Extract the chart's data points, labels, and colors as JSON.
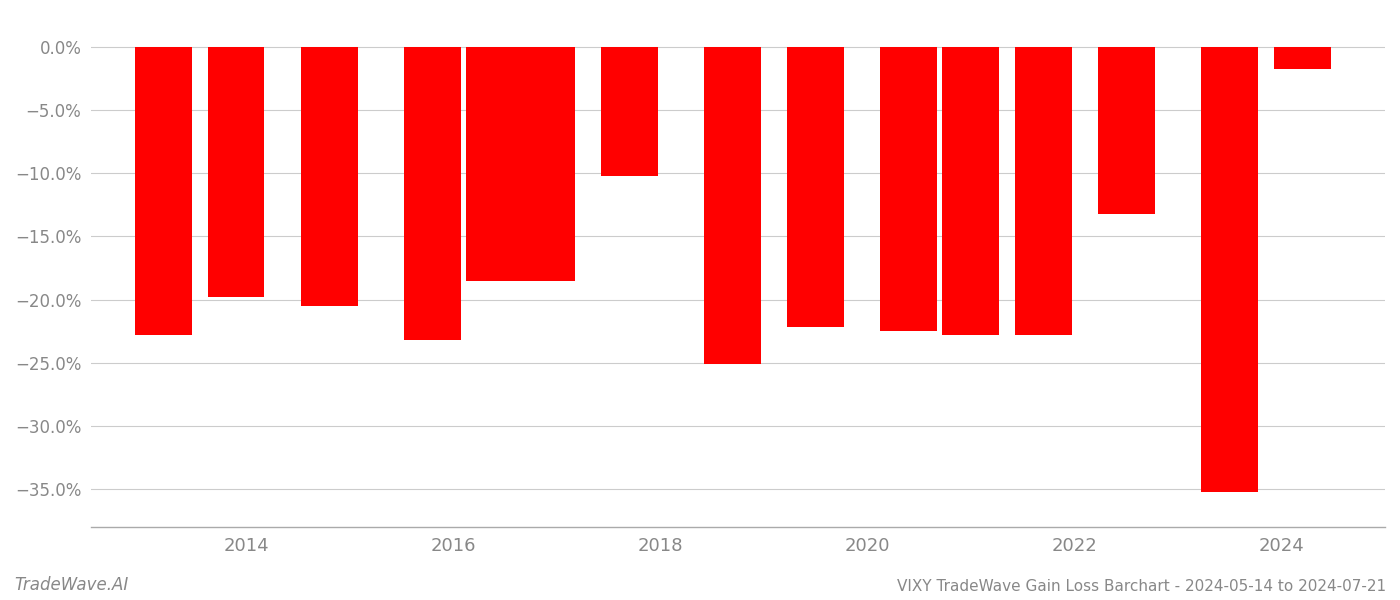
{
  "years": [
    2013.2,
    2013.9,
    2014.8,
    2015.8,
    2016.4,
    2016.9,
    2017.7,
    2018.7,
    2019.5,
    2020.4,
    2021.0,
    2021.7,
    2022.5,
    2023.5,
    2024.2
  ],
  "values": [
    -0.228,
    -0.198,
    -0.205,
    -0.232,
    -0.185,
    -0.185,
    -0.102,
    -0.251,
    -0.222,
    -0.225,
    -0.228,
    -0.228,
    -0.132,
    -0.352,
    -0.018
  ],
  "bar_color": "#ff0000",
  "background_color": "#ffffff",
  "grid_color": "#cccccc",
  "tick_label_color": "#888888",
  "ylim": [
    -0.38,
    0.025
  ],
  "yticks": [
    0.0,
    -0.05,
    -0.1,
    -0.15,
    -0.2,
    -0.25,
    -0.3,
    -0.35
  ],
  "xlim": [
    2012.5,
    2025.0
  ],
  "xticks": [
    2014,
    2016,
    2018,
    2020,
    2022,
    2024
  ],
  "bar_width": 0.55,
  "footer_left": "TradeWave.AI",
  "footer_right": "VIXY TradeWave Gain Loss Barchart - 2024-05-14 to 2024-07-21"
}
